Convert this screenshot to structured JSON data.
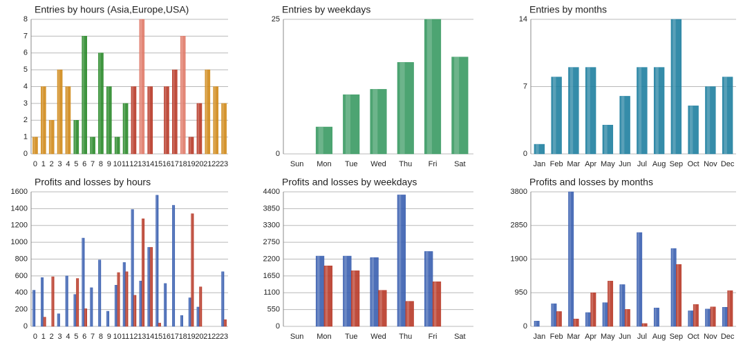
{
  "chart_data": [
    {
      "type": "bar",
      "title": "Entries by hours (Asia,Europe,USA)",
      "categories": [
        "0",
        "1",
        "2",
        "3",
        "4",
        "5",
        "6",
        "7",
        "8",
        "9",
        "10",
        "11",
        "12",
        "13",
        "14",
        "15",
        "16",
        "17",
        "18",
        "19",
        "20",
        "21",
        "22",
        "23"
      ],
      "values": [
        1,
        4,
        2,
        5,
        4,
        2,
        7,
        1,
        6,
        4,
        1,
        3,
        4,
        8,
        4,
        0,
        4,
        5,
        7,
        1,
        3,
        5,
        4,
        3
      ],
      "colors": [
        "#d08a1a",
        "#d08a1a",
        "#d08a1a",
        "#d08a1a",
        "#d08a1a",
        "#2a8a2a",
        "#2a8a2a",
        "#2a8a2a",
        "#2a8a2a",
        "#2a8a2a",
        "#2a8a2a",
        "#2a8a2a",
        "#b83a28",
        "#e07a68",
        "#b83a28",
        "#b83a28",
        "#b83a28",
        "#b83a28",
        "#e07a68",
        "#b83a28",
        "#b83a28",
        "#d08a1a",
        "#d08a1a",
        "#d08a1a"
      ],
      "ylim": [
        0,
        8
      ],
      "yticks": [
        0,
        1,
        2,
        3,
        4,
        5,
        6,
        7,
        8
      ],
      "grid": true
    },
    {
      "type": "bar",
      "title": "Entries by weekdays",
      "categories": [
        "Sun",
        "Mon",
        "Tue",
        "Wed",
        "Thu",
        "Fri",
        "Sat"
      ],
      "values": [
        0,
        5,
        11,
        12,
        17,
        25,
        18
      ],
      "color": "#3a9a63",
      "ylim": [
        0,
        25
      ],
      "yticks": [
        0,
        25
      ],
      "grid": true
    },
    {
      "type": "bar",
      "title": "Entries by months",
      "categories": [
        "Jan",
        "Feb",
        "Mar",
        "Apr",
        "May",
        "Jun",
        "Jul",
        "Aug",
        "Sep",
        "Oct",
        "Nov",
        "Dec"
      ],
      "values": [
        1,
        8,
        9,
        9,
        3,
        6,
        9,
        9,
        14,
        5,
        7,
        8
      ],
      "color": "#1f7fa0",
      "ylim": [
        0,
        14
      ],
      "yticks": [
        0,
        7,
        14
      ],
      "grid": true
    },
    {
      "type": "bar",
      "title": "Profits and losses by hours",
      "categories": [
        "0",
        "1",
        "2",
        "3",
        "4",
        "5",
        "6",
        "7",
        "8",
        "9",
        "10",
        "11",
        "12",
        "13",
        "14",
        "15",
        "16",
        "17",
        "18",
        "19",
        "20",
        "21",
        "22",
        "23"
      ],
      "series": [
        {
          "color": "#3a5fb0",
          "values": [
            430,
            580,
            0,
            150,
            600,
            380,
            1050,
            460,
            790,
            180,
            490,
            760,
            1390,
            540,
            940,
            1560,
            510,
            1440,
            130,
            340,
            230,
            0,
            0,
            650
          ]
        },
        {
          "color": "#b83a28",
          "values": [
            0,
            110,
            590,
            0,
            0,
            570,
            210,
            0,
            0,
            0,
            640,
            650,
            370,
            1280,
            940,
            40,
            0,
            0,
            0,
            1340,
            470,
            0,
            0,
            80
          ]
        }
      ],
      "ylim": [
        0,
        1600
      ],
      "yticks": [
        0,
        200,
        400,
        600,
        800,
        1000,
        1200,
        1400,
        1600
      ],
      "grid": true
    },
    {
      "type": "bar",
      "title": "Profits and losses by weekdays",
      "categories": [
        "Sun",
        "Mon",
        "Tue",
        "Wed",
        "Thu",
        "Fri",
        "Sat"
      ],
      "series": [
        {
          "color": "#3a5fb0",
          "values": [
            0,
            2300,
            2300,
            2250,
            4300,
            2450,
            0
          ]
        },
        {
          "color": "#b83a28",
          "values": [
            0,
            1980,
            1820,
            1180,
            820,
            1460,
            0
          ]
        }
      ],
      "ylim": [
        0,
        4400
      ],
      "yticks": [
        0,
        550,
        1100,
        1650,
        2200,
        2750,
        3300,
        3850,
        4400
      ],
      "grid": true
    },
    {
      "type": "bar",
      "title": "Profits and losses by months",
      "categories": [
        "Jan",
        "Feb",
        "Mar",
        "Apr",
        "May",
        "Jun",
        "Jul",
        "Aug",
        "Sep",
        "Oct",
        "Nov",
        "Dec"
      ],
      "series": [
        {
          "color": "#3a5fb0",
          "values": [
            150,
            640,
            3800,
            390,
            670,
            1180,
            2650,
            520,
            2200,
            440,
            490,
            540
          ]
        },
        {
          "color": "#b83a28",
          "values": [
            0,
            420,
            210,
            950,
            1280,
            480,
            80,
            0,
            1750,
            620,
            550,
            1010
          ]
        }
      ],
      "ylim": [
        0,
        3800
      ],
      "yticks": [
        0,
        950,
        1900,
        2850,
        3800
      ],
      "grid": true
    }
  ]
}
